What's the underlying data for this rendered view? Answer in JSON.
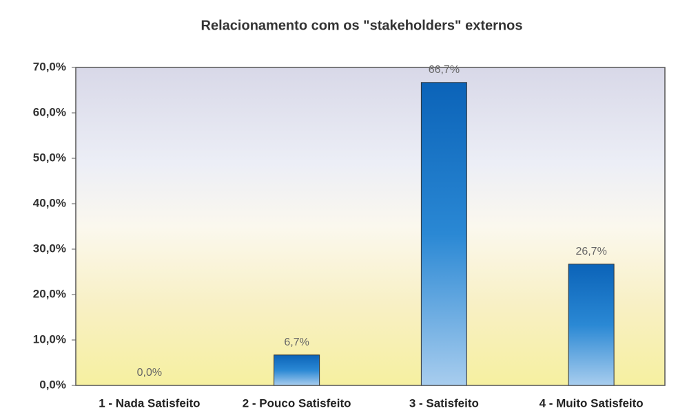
{
  "chart_data": {
    "type": "bar",
    "title": "Relacionamento com os \"stakeholders\" externos",
    "categories": [
      "1 - Nada Satisfeito",
      "2 - Pouco Satisfeito",
      "3 - Satisfeito",
      "4 - Muito Satisfeito"
    ],
    "values": [
      0,
      6.7,
      66.7,
      26.7
    ],
    "value_labels": [
      "0,0%",
      "6,7%",
      "66,7%",
      "26,7%"
    ],
    "color": "#0b63b8",
    "ylim": [
      0,
      70
    ],
    "yticks": [
      {
        "value": 0,
        "label": "0,0%"
      },
      {
        "value": 10,
        "label": "10,0%"
      },
      {
        "value": 20,
        "label": "20,0%"
      },
      {
        "value": 30,
        "label": "30,0%"
      },
      {
        "value": 40,
        "label": "40,0%"
      },
      {
        "value": 50,
        "label": "50,0%"
      },
      {
        "value": 60,
        "label": "60,0%"
      },
      {
        "value": 70,
        "label": "70,0%"
      }
    ],
    "grid": false
  }
}
